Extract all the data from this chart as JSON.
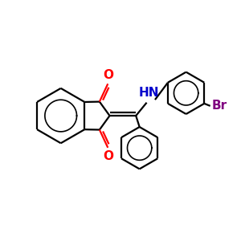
{
  "bg_color": "#ffffff",
  "bond_color": "#000000",
  "oxygen_color": "#ff0000",
  "nitrogen_color": "#0000cc",
  "bromine_color": "#800080",
  "line_width": 1.6,
  "font_size": 10,
  "xlim": [
    0,
    10
  ],
  "ylim": [
    0,
    10
  ]
}
